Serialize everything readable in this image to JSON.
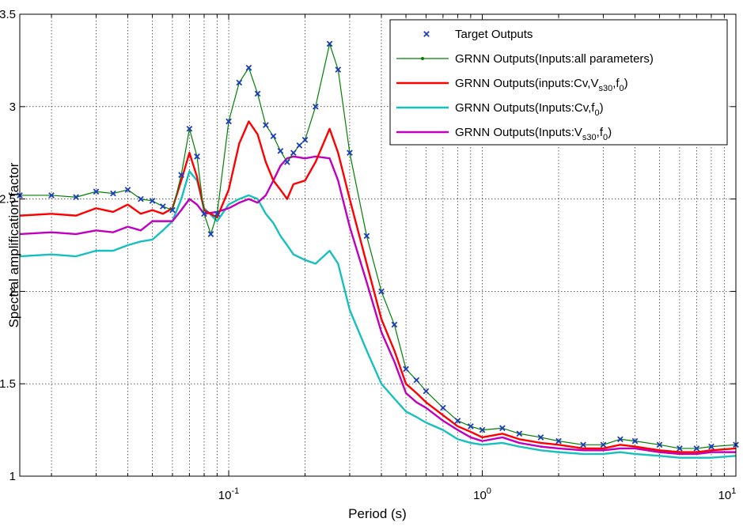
{
  "chart_data": {
    "type": "line",
    "title": "",
    "xlabel": "Period (s)",
    "ylabel": "Spectral amplification factor",
    "xscale": "log",
    "xlim": [
      0.015,
      10
    ],
    "ylim": [
      1,
      3.5
    ],
    "grid": true,
    "legend_position": "top-right",
    "x_ticks": [
      {
        "value": 0.1,
        "base": "10",
        "exponent": "-1"
      },
      {
        "value": 1,
        "base": "10",
        "exponent": "0"
      },
      {
        "value": 10,
        "base": "10",
        "exponent": "1"
      }
    ],
    "y_ticks": [
      {
        "value": 1,
        "label": "1"
      },
      {
        "value": 1.5,
        "label": "1.5"
      },
      {
        "value": 2,
        "label": "2"
      },
      {
        "value": 2.5,
        "label": "2.5"
      },
      {
        "value": 3,
        "label": "3"
      },
      {
        "value": 3.5,
        "label": "3.5"
      }
    ],
    "series": [
      {
        "name": "Target Outputs",
        "color": "#1f3dbf",
        "marker": "x",
        "points": [
          [
            0.015,
            2.52
          ],
          [
            0.02,
            2.52
          ],
          [
            0.025,
            2.51
          ],
          [
            0.03,
            2.54
          ],
          [
            0.035,
            2.53
          ],
          [
            0.04,
            2.55
          ],
          [
            0.045,
            2.5
          ],
          [
            0.05,
            2.49
          ],
          [
            0.055,
            2.46
          ],
          [
            0.06,
            2.44
          ],
          [
            0.065,
            2.63
          ],
          [
            0.07,
            2.88
          ],
          [
            0.075,
            2.73
          ],
          [
            0.08,
            2.42
          ],
          [
            0.085,
            2.31
          ],
          [
            0.09,
            2.42
          ],
          [
            0.1,
            2.92
          ],
          [
            0.11,
            3.13
          ],
          [
            0.12,
            3.21
          ],
          [
            0.13,
            3.07
          ],
          [
            0.14,
            2.9
          ],
          [
            0.15,
            2.84
          ],
          [
            0.16,
            2.76
          ],
          [
            0.17,
            2.7
          ],
          [
            0.18,
            2.75
          ],
          [
            0.19,
            2.79
          ],
          [
            0.2,
            2.82
          ],
          [
            0.22,
            3.0
          ],
          [
            0.25,
            3.34
          ],
          [
            0.27,
            3.2
          ],
          [
            0.3,
            2.75
          ],
          [
            0.35,
            2.3
          ],
          [
            0.4,
            2.0
          ],
          [
            0.45,
            1.82
          ],
          [
            0.5,
            1.58
          ],
          [
            0.55,
            1.52
          ],
          [
            0.6,
            1.46
          ],
          [
            0.7,
            1.37
          ],
          [
            0.8,
            1.3
          ],
          [
            0.9,
            1.27
          ],
          [
            1.0,
            1.25
          ],
          [
            1.2,
            1.26
          ],
          [
            1.4,
            1.23
          ],
          [
            1.7,
            1.21
          ],
          [
            2.0,
            1.19
          ],
          [
            2.5,
            1.17
          ],
          [
            3.0,
            1.17
          ],
          [
            3.5,
            1.2
          ],
          [
            4.0,
            1.19
          ],
          [
            5.0,
            1.17
          ],
          [
            6.0,
            1.15
          ],
          [
            7.0,
            1.15
          ],
          [
            8.0,
            1.16
          ],
          [
            10.0,
            1.17
          ]
        ]
      },
      {
        "name": "GRNN Outputs(Inputs:all parameters)",
        "color": "#008000",
        "marker": "dot",
        "points": [
          [
            0.015,
            2.52
          ],
          [
            0.02,
            2.52
          ],
          [
            0.025,
            2.51
          ],
          [
            0.03,
            2.54
          ],
          [
            0.035,
            2.53
          ],
          [
            0.04,
            2.55
          ],
          [
            0.045,
            2.5
          ],
          [
            0.05,
            2.49
          ],
          [
            0.055,
            2.46
          ],
          [
            0.06,
            2.44
          ],
          [
            0.065,
            2.63
          ],
          [
            0.07,
            2.88
          ],
          [
            0.075,
            2.73
          ],
          [
            0.08,
            2.42
          ],
          [
            0.085,
            2.31
          ],
          [
            0.09,
            2.42
          ],
          [
            0.1,
            2.92
          ],
          [
            0.11,
            3.13
          ],
          [
            0.12,
            3.21
          ],
          [
            0.13,
            3.07
          ],
          [
            0.14,
            2.9
          ],
          [
            0.15,
            2.84
          ],
          [
            0.16,
            2.76
          ],
          [
            0.17,
            2.7
          ],
          [
            0.18,
            2.75
          ],
          [
            0.19,
            2.79
          ],
          [
            0.2,
            2.82
          ],
          [
            0.22,
            3.0
          ],
          [
            0.25,
            3.34
          ],
          [
            0.27,
            3.2
          ],
          [
            0.3,
            2.75
          ],
          [
            0.35,
            2.3
          ],
          [
            0.4,
            2.0
          ],
          [
            0.45,
            1.82
          ],
          [
            0.5,
            1.58
          ],
          [
            0.55,
            1.52
          ],
          [
            0.6,
            1.46
          ],
          [
            0.7,
            1.37
          ],
          [
            0.8,
            1.3
          ],
          [
            0.9,
            1.27
          ],
          [
            1.0,
            1.25
          ],
          [
            1.2,
            1.26
          ],
          [
            1.4,
            1.23
          ],
          [
            1.7,
            1.21
          ],
          [
            2.0,
            1.19
          ],
          [
            2.5,
            1.17
          ],
          [
            3.0,
            1.17
          ],
          [
            3.5,
            1.2
          ],
          [
            4.0,
            1.19
          ],
          [
            5.0,
            1.17
          ],
          [
            6.0,
            1.15
          ],
          [
            7.0,
            1.15
          ],
          [
            8.0,
            1.16
          ],
          [
            10.0,
            1.17
          ]
        ]
      },
      {
        "name": "GRNN Outputs(inputs:Cv,Vs30,f0)",
        "color": "#ff0000",
        "marker": "none",
        "points": [
          [
            0.015,
            2.41
          ],
          [
            0.02,
            2.42
          ],
          [
            0.025,
            2.41
          ],
          [
            0.03,
            2.45
          ],
          [
            0.035,
            2.43
          ],
          [
            0.04,
            2.47
          ],
          [
            0.045,
            2.42
          ],
          [
            0.05,
            2.44
          ],
          [
            0.055,
            2.42
          ],
          [
            0.06,
            2.45
          ],
          [
            0.065,
            2.6
          ],
          [
            0.07,
            2.75
          ],
          [
            0.075,
            2.62
          ],
          [
            0.08,
            2.44
          ],
          [
            0.09,
            2.4
          ],
          [
            0.1,
            2.55
          ],
          [
            0.11,
            2.8
          ],
          [
            0.12,
            2.92
          ],
          [
            0.13,
            2.85
          ],
          [
            0.14,
            2.7
          ],
          [
            0.15,
            2.6
          ],
          [
            0.16,
            2.55
          ],
          [
            0.17,
            2.5
          ],
          [
            0.18,
            2.58
          ],
          [
            0.2,
            2.6
          ],
          [
            0.22,
            2.7
          ],
          [
            0.25,
            2.88
          ],
          [
            0.27,
            2.75
          ],
          [
            0.3,
            2.5
          ],
          [
            0.35,
            2.15
          ],
          [
            0.4,
            1.85
          ],
          [
            0.45,
            1.68
          ],
          [
            0.5,
            1.5
          ],
          [
            0.55,
            1.45
          ],
          [
            0.6,
            1.4
          ],
          [
            0.7,
            1.33
          ],
          [
            0.8,
            1.27
          ],
          [
            0.9,
            1.24
          ],
          [
            1.0,
            1.21
          ],
          [
            1.2,
            1.23
          ],
          [
            1.4,
            1.2
          ],
          [
            1.7,
            1.18
          ],
          [
            2.0,
            1.17
          ],
          [
            2.5,
            1.15
          ],
          [
            3.0,
            1.15
          ],
          [
            3.5,
            1.17
          ],
          [
            4.0,
            1.16
          ],
          [
            5.0,
            1.14
          ],
          [
            6.0,
            1.13
          ],
          [
            7.0,
            1.13
          ],
          [
            8.0,
            1.14
          ],
          [
            10.0,
            1.15
          ]
        ]
      },
      {
        "name": "GRNN Outputs(Inputs:Cv,f0)",
        "color": "#17bfbf",
        "marker": "none",
        "points": [
          [
            0.015,
            2.19
          ],
          [
            0.02,
            2.2
          ],
          [
            0.025,
            2.19
          ],
          [
            0.03,
            2.22
          ],
          [
            0.035,
            2.22
          ],
          [
            0.04,
            2.25
          ],
          [
            0.045,
            2.27
          ],
          [
            0.05,
            2.28
          ],
          [
            0.055,
            2.33
          ],
          [
            0.06,
            2.38
          ],
          [
            0.065,
            2.5
          ],
          [
            0.07,
            2.65
          ],
          [
            0.075,
            2.6
          ],
          [
            0.08,
            2.45
          ],
          [
            0.09,
            2.38
          ],
          [
            0.1,
            2.47
          ],
          [
            0.11,
            2.5
          ],
          [
            0.12,
            2.52
          ],
          [
            0.13,
            2.5
          ],
          [
            0.14,
            2.42
          ],
          [
            0.15,
            2.37
          ],
          [
            0.16,
            2.3
          ],
          [
            0.17,
            2.25
          ],
          [
            0.18,
            2.2
          ],
          [
            0.2,
            2.17
          ],
          [
            0.22,
            2.15
          ],
          [
            0.25,
            2.22
          ],
          [
            0.27,
            2.15
          ],
          [
            0.3,
            1.9
          ],
          [
            0.35,
            1.68
          ],
          [
            0.4,
            1.5
          ],
          [
            0.45,
            1.42
          ],
          [
            0.5,
            1.35
          ],
          [
            0.55,
            1.32
          ],
          [
            0.6,
            1.29
          ],
          [
            0.7,
            1.25
          ],
          [
            0.8,
            1.2
          ],
          [
            0.9,
            1.18
          ],
          [
            1.0,
            1.17
          ],
          [
            1.2,
            1.18
          ],
          [
            1.4,
            1.16
          ],
          [
            1.7,
            1.14
          ],
          [
            2.0,
            1.13
          ],
          [
            2.5,
            1.12
          ],
          [
            3.0,
            1.12
          ],
          [
            3.5,
            1.13
          ],
          [
            4.0,
            1.12
          ],
          [
            5.0,
            1.11
          ],
          [
            6.0,
            1.1
          ],
          [
            7.0,
            1.1
          ],
          [
            8.0,
            1.1
          ],
          [
            10.0,
            1.11
          ]
        ]
      },
      {
        "name": "GRNN Outputs(Inputs:Vs30,f0)",
        "color": "#bf00bf",
        "marker": "none",
        "points": [
          [
            0.015,
            2.31
          ],
          [
            0.02,
            2.32
          ],
          [
            0.025,
            2.31
          ],
          [
            0.03,
            2.33
          ],
          [
            0.035,
            2.32
          ],
          [
            0.04,
            2.35
          ],
          [
            0.045,
            2.33
          ],
          [
            0.05,
            2.38
          ],
          [
            0.055,
            2.38
          ],
          [
            0.06,
            2.38
          ],
          [
            0.065,
            2.44
          ],
          [
            0.07,
            2.5
          ],
          [
            0.075,
            2.47
          ],
          [
            0.08,
            2.42
          ],
          [
            0.09,
            2.43
          ],
          [
            0.1,
            2.45
          ],
          [
            0.11,
            2.48
          ],
          [
            0.12,
            2.5
          ],
          [
            0.13,
            2.48
          ],
          [
            0.14,
            2.52
          ],
          [
            0.15,
            2.6
          ],
          [
            0.16,
            2.68
          ],
          [
            0.17,
            2.72
          ],
          [
            0.18,
            2.73
          ],
          [
            0.2,
            2.72
          ],
          [
            0.22,
            2.73
          ],
          [
            0.25,
            2.72
          ],
          [
            0.27,
            2.6
          ],
          [
            0.3,
            2.35
          ],
          [
            0.35,
            2.05
          ],
          [
            0.4,
            1.78
          ],
          [
            0.45,
            1.62
          ],
          [
            0.5,
            1.45
          ],
          [
            0.55,
            1.4
          ],
          [
            0.6,
            1.37
          ],
          [
            0.7,
            1.3
          ],
          [
            0.8,
            1.25
          ],
          [
            0.9,
            1.21
          ],
          [
            1.0,
            1.19
          ],
          [
            1.2,
            1.21
          ],
          [
            1.4,
            1.18
          ],
          [
            1.7,
            1.16
          ],
          [
            2.0,
            1.15
          ],
          [
            2.5,
            1.14
          ],
          [
            3.0,
            1.14
          ],
          [
            3.5,
            1.15
          ],
          [
            4.0,
            1.15
          ],
          [
            5.0,
            1.13
          ],
          [
            6.0,
            1.12
          ],
          [
            7.0,
            1.12
          ],
          [
            8.0,
            1.13
          ],
          [
            10.0,
            1.13
          ]
        ]
      }
    ]
  },
  "legend": {
    "items": [
      {
        "prefix": "Target Outputs",
        "sub1": "",
        "mid": "",
        "sub2": "",
        "suffix": "",
        "color": "#1f3dbf",
        "marker": "x"
      },
      {
        "prefix": "GRNN Outputs(Inputs:all parameters)",
        "sub1": "",
        "mid": "",
        "sub2": "",
        "suffix": "",
        "color": "#008000",
        "marker": "dot"
      },
      {
        "prefix": "GRNN Outputs(inputs:Cv,V",
        "sub1": "s30",
        "mid": ",f",
        "sub2": "0",
        "suffix": ")",
        "color": "#ff0000",
        "marker": "none"
      },
      {
        "prefix": "GRNN Outputs(Inputs:Cv,f",
        "sub1": "0",
        "mid": ")",
        "sub2": "",
        "suffix": "",
        "color": "#17bfbf",
        "marker": "none"
      },
      {
        "prefix": "GRNN Outputs(Inputs:V",
        "sub1": "s30",
        "mid": ",f",
        "sub2": "0",
        "suffix": ")",
        "color": "#bf00bf",
        "marker": "none"
      }
    ]
  }
}
